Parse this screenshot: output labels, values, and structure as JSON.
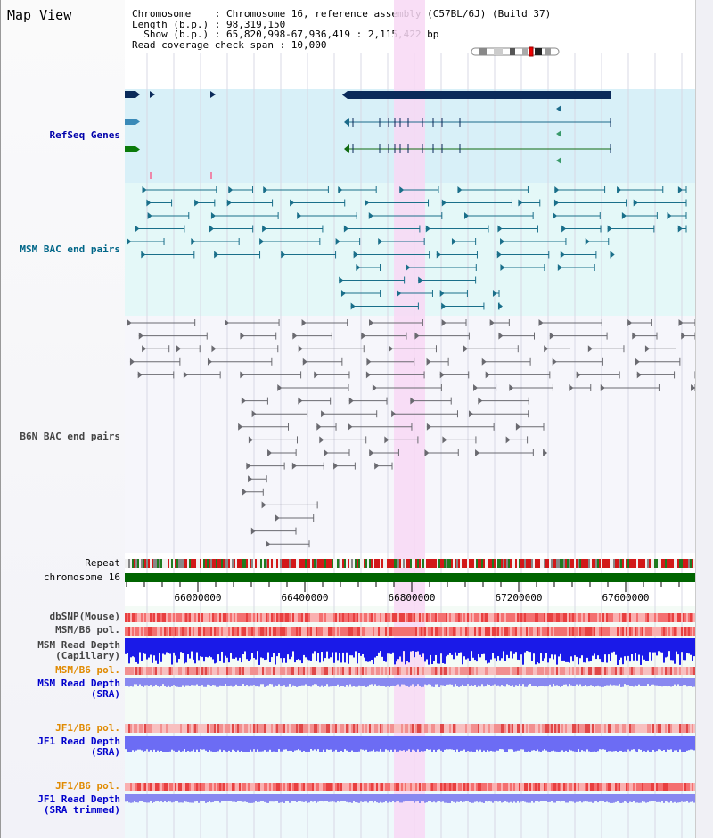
{
  "title": "Map View",
  "info": {
    "line1": "Chromosome    : Chromosome 16, reference assembly (C57BL/6J) (Build 37)",
    "line2": "Length (b.p.) : 98,319,150",
    "line3": "  Show (b.p.) : 65,820,998-67,936,419 : 2,115,422 bp",
    "line4": "Read coverage check span : 10,000"
  },
  "tracks": {
    "refseq": "RefSeq Genes",
    "msm_bac": "MSM BAC end pairs",
    "b6n_bac": "B6N BAC end pairs",
    "repeat": "Repeat",
    "chromosome": "chromosome 16",
    "dbsnp": "dbSNP(Mouse)",
    "msm_b6_pol": "MSM/B6 pol.",
    "msm_rd_cap_1": "MSM Read Depth",
    "msm_rd_cap_2": "(Capillary)",
    "msm_b6_pol2": "MSM/B6 pol.",
    "msm_rd_sra_1": "MSM Read Depth",
    "msm_rd_sra_2": "(SRA)",
    "jf1_b6_pol": "JF1/B6 pol.",
    "jf1_rd_sra_1": "JF1 Read Depth",
    "jf1_rd_sra_2": "(SRA)",
    "jf1_b6_pol2": "JF1/B6 pol.",
    "jf1_rd_trim_1": "JF1 Read Depth",
    "jf1_rd_trim_2": "(SRA trimmed)"
  },
  "axis": {
    "ticks": [
      "66000000",
      "66400000",
      "66800000",
      "67200000",
      "67600000"
    ]
  },
  "colors": {
    "refseq_bg": "#d8f0f8",
    "bac_bg": "#e4f8f8",
    "b6n_bg": "#f6f6fb",
    "highlight": "#f8d8f4",
    "gene_dark": "#0a2a5a",
    "chrom_green": "#006400",
    "pol_orange": "#e08a00",
    "depth_blue": "#1a1ae0"
  }
}
